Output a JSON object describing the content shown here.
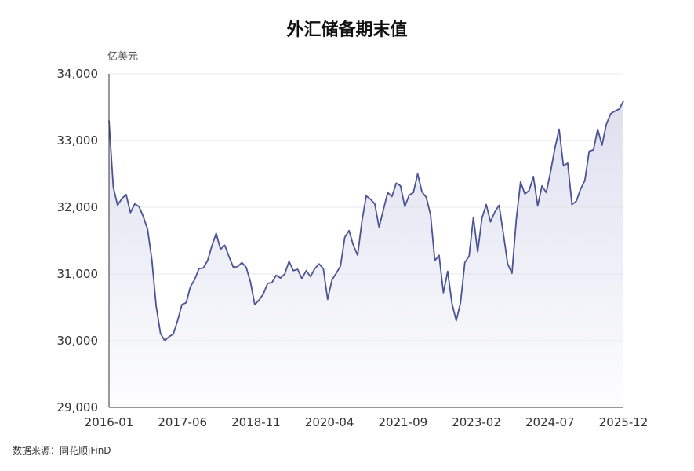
{
  "chart_data": {
    "type": "area",
    "title": "外汇储备期末值",
    "unit": "亿美元",
    "source": "数据来源：同花顺iFinD",
    "xlabel": "",
    "ylabel": "",
    "ylim": [
      29000,
      34000
    ],
    "yticks": [
      "29,000",
      "30,000",
      "31,000",
      "32,000",
      "33,000",
      "34,000"
    ],
    "ytick_values": [
      29000,
      30000,
      31000,
      32000,
      33000,
      34000
    ],
    "xtick_labels": [
      "2016-01",
      "2017-06",
      "2018-11",
      "2020-04",
      "2021-09",
      "2023-02",
      "2024-07",
      "2025-12"
    ],
    "grid": true,
    "legend": "none",
    "line_color": "#4a5494",
    "fill_color": "#dcdeee",
    "series": [
      {
        "values": [
          33300,
          32300,
          32030,
          32130,
          32190,
          31920,
          32050,
          32010,
          31860,
          31670,
          31210,
          30520,
          30110,
          30000,
          30060,
          30100,
          30300,
          30540,
          30570,
          30810,
          30920,
          31080,
          31090,
          31200,
          31420,
          31610,
          31370,
          31430,
          31260,
          31100,
          31110,
          31170,
          31100,
          30880,
          30540,
          30610,
          30700,
          30860,
          30870,
          30980,
          30940,
          31000,
          31190,
          31050,
          31070,
          30930,
          31050,
          30960,
          31080,
          31150,
          31080,
          30620,
          30910,
          31010,
          31120,
          31550,
          31650,
          31430,
          31280,
          31790,
          32170,
          32120,
          32050,
          31700,
          31960,
          32220,
          32160,
          32360,
          32320,
          32010,
          32180,
          32220,
          32500,
          32230,
          32150,
          31890,
          31200,
          31280,
          30720,
          31040,
          30560,
          30300,
          30570,
          31170,
          31270,
          31850,
          31330,
          31840,
          32040,
          31780,
          31930,
          32030,
          31600,
          31150,
          31010,
          31810,
          32380,
          32200,
          32250,
          32460,
          32020,
          32320,
          32220,
          32530,
          32880,
          33170,
          32620,
          32660,
          32040,
          32090,
          32270,
          32400,
          32840,
          32860,
          33170,
          32930,
          33240,
          33400,
          33440,
          33470,
          33590
        ]
      }
    ]
  }
}
